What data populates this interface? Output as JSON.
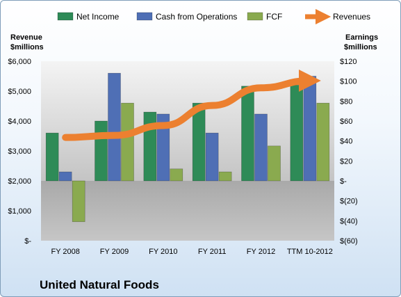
{
  "chart_data": {
    "type": "bar",
    "company": "United Natural Foods",
    "categories": [
      "FY 2008",
      "FY 2009",
      "FY 2010",
      "FY 2011",
      "FY 2012",
      "TTM 10-2012"
    ],
    "left_axis": {
      "label_line1": "Revenue",
      "label_line2": "$millions",
      "range": [
        0,
        6000
      ],
      "ticks": [
        0,
        1000,
        2000,
        3000,
        4000,
        5000,
        6000
      ],
      "tick_labels": [
        "$-",
        "$1,000",
        "$2,000",
        "$3,000",
        "$4,000",
        "$5,000",
        "$6,000"
      ]
    },
    "right_axis": {
      "label_line1": "Earnings",
      "label_line2": "$millions",
      "range": [
        -60,
        120
      ],
      "ticks": [
        -60,
        -40,
        -20,
        0,
        20,
        40,
        60,
        80,
        100,
        120
      ],
      "tick_labels": [
        "$(60)",
        "$(40)",
        "$(20)",
        "$-",
        "$20",
        "$40",
        "$60",
        "$80",
        "$100",
        "$120"
      ]
    },
    "series": [
      {
        "name": "Net Income",
        "axis": "right",
        "type": "bar",
        "color": "#2e8b57",
        "values": [
          48,
          60,
          69,
          78,
          95,
          96
        ]
      },
      {
        "name": "Cash from Operations",
        "axis": "right",
        "type": "bar",
        "color": "#4f6fb5",
        "values": [
          9,
          108,
          67,
          48,
          67,
          105
        ]
      },
      {
        "name": "FCF",
        "axis": "right",
        "type": "bar",
        "color": "#8aaa4f",
        "values": [
          -41,
          78,
          12,
          9,
          35,
          78
        ]
      },
      {
        "name": "Revenues",
        "axis": "left",
        "type": "line",
        "color": "#ec8030",
        "values": [
          3450,
          3520,
          3850,
          4520,
          5110,
          5350
        ]
      }
    ],
    "grid": false,
    "legend_position": "top"
  }
}
